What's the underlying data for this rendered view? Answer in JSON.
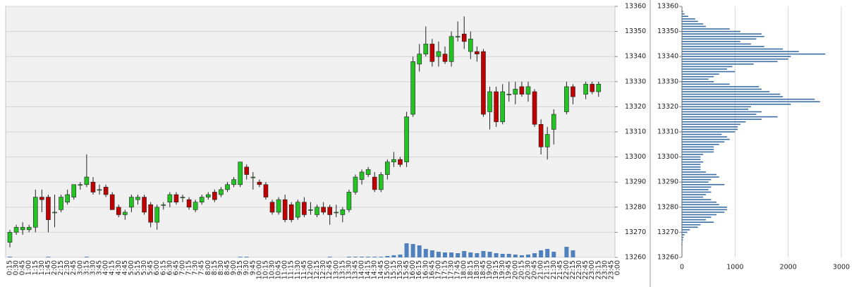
{
  "chart_data": [
    {
      "type": "candlestick",
      "x": [
        "0:15",
        "0:30",
        "0:45",
        "1:00",
        "1:15",
        "1:30",
        "1:45",
        "2:00",
        "2:15",
        "2:30",
        "2:45",
        "3:00",
        "3:15",
        "3:30",
        "3:45",
        "4:00",
        "4:15",
        "4:30",
        "4:45",
        "5:00",
        "5:15",
        "5:30",
        "5:45",
        "6:00",
        "6:15",
        "6:30",
        "6:45",
        "7:00",
        "7:15",
        "7:30",
        "7:45",
        "8:00",
        "8:15",
        "8:30",
        "8:45",
        "9:00",
        "9:15",
        "9:30",
        "9:45",
        "10:00",
        "10:15",
        "10:30",
        "10:45",
        "11:00",
        "11:15",
        "11:30",
        "11:45",
        "12:00",
        "12:15",
        "12:30",
        "12:45",
        "13:00",
        "13:15",
        "13:30",
        "13:45",
        "14:00",
        "14:15",
        "14:30",
        "14:45",
        "15:00",
        "15:15",
        "15:30",
        "15:45",
        "16:00",
        "16:15",
        "16:30",
        "16:45",
        "17:00",
        "17:15",
        "17:30",
        "17:45",
        "18:00",
        "18:15",
        "18:30",
        "18:45",
        "19:00",
        "19:15",
        "19:30",
        "19:45",
        "20:00",
        "20:15",
        "20:30",
        "20:45",
        "21:00",
        "21:15",
        "21:30",
        "21:45",
        "22:00",
        "22:15",
        "22:30",
        "22:45",
        "23:00",
        "23:15",
        "23:30",
        "23:45",
        "0:00"
      ],
      "open": [
        13266,
        13270,
        13271,
        13271,
        13272,
        13284,
        13284,
        13278,
        13279,
        13282,
        13284,
        13289,
        13289,
        13290,
        13287,
        13288,
        13285,
        13280,
        13277,
        13280,
        13283,
        13284,
        13281,
        13274,
        13281,
        13282,
        13285,
        13284,
        13283,
        13279,
        13282,
        13284,
        13286,
        13285,
        13287,
        13289,
        13289,
        13296,
        13292,
        13290,
        13289,
        13282,
        13278,
        13283,
        13281,
        13276,
        13282,
        13279,
        13277,
        13280,
        13280,
        13278,
        13277,
        13279,
        13286,
        13291,
        13293,
        13292,
        13287,
        13293,
        13298,
        13299,
        13298,
        13317,
        13337,
        13341,
        13345,
        13340,
        13341,
        13338,
        13348,
        13349,
        13342,
        13342,
        13342,
        13318,
        13326,
        13314,
        13325,
        13325,
        13328,
        13325,
        13326,
        13313,
        13304,
        13311,
        null,
        13318,
        13328,
        null,
        13325,
        13329,
        13326,
        null,
        null,
        null
      ],
      "high": [
        13271,
        13273,
        13274,
        13273,
        13287,
        13287,
        13285,
        13285,
        13285,
        13287,
        13289,
        13290,
        13301,
        13292,
        13289,
        13289,
        13286,
        13281,
        13279,
        13285,
        13285,
        13285,
        13282,
        13281,
        13282,
        13286,
        13286,
        13285,
        13284,
        13283,
        13285,
        13286,
        13287,
        13288,
        13290,
        13292,
        13298,
        13297,
        13294,
        13291,
        13290,
        13283,
        13284,
        13285,
        13282,
        13283,
        13284,
        13282,
        13281,
        13282,
        13281,
        13281,
        13280,
        13287,
        13293,
        13295,
        13296,
        13294,
        13294,
        13299,
        13302,
        13300,
        13318,
        13340,
        13345,
        13352,
        13347,
        13346,
        13344,
        13350,
        13354,
        13356,
        13350,
        13344,
        13343,
        13328,
        13328,
        13329,
        13330,
        13330,
        13330,
        13330,
        13327,
        13315,
        13312,
        13319,
        null,
        13330,
        13329,
        null,
        13330,
        13330,
        13330,
        null,
        null,
        null
      ],
      "low": [
        13264,
        13269,
        13269,
        13270,
        13270,
        13278,
        13270,
        13272,
        13278,
        13281,
        13283,
        13287,
        13288,
        13285,
        13285,
        13284,
        13279,
        13276,
        13275,
        13278,
        13281,
        13277,
        13272,
        13271,
        13279,
        13280,
        13281,
        13282,
        13279,
        13278,
        13281,
        13283,
        13282,
        13284,
        13286,
        13288,
        13288,
        13291,
        13287,
        13288,
        13283,
        13277,
        13277,
        13274,
        13274,
        13275,
        13276,
        13277,
        13276,
        13277,
        13273,
        13276,
        13274,
        13278,
        13285,
        13289,
        13292,
        13286,
        13286,
        13291,
        13296,
        13296,
        13296,
        13316,
        13334,
        13340,
        13336,
        13336,
        13337,
        13336,
        13346,
        13343,
        13339,
        13338,
        13316,
        13311,
        13312,
        13313,
        13322,
        13321,
        13324,
        13322,
        13312,
        13301,
        13299,
        13305,
        null,
        13317,
        13321,
        null,
        13323,
        13325,
        13324,
        null,
        null,
        null
      ],
      "close": [
        13270,
        13272,
        13272,
        13272,
        13284,
        13283,
        13275,
        13278,
        13284,
        13285,
        13289,
        13289,
        13292,
        13286,
        13287,
        13285,
        13279,
        13277,
        13278,
        13284,
        13284,
        13278,
        13274,
        13280,
        13281,
        13285,
        13282,
        13284,
        13280,
        13282,
        13284,
        13285,
        13283,
        13287,
        13289,
        13291,
        13298,
        13293,
        13292,
        13289,
        13284,
        13278,
        13283,
        13275,
        13275,
        13282,
        13277,
        13279,
        13280,
        13278,
        13277,
        13278,
        13279,
        13286,
        13292,
        13294,
        13295,
        13287,
        13293,
        13298,
        13299,
        13297,
        13316,
        13338,
        13341,
        13345,
        13338,
        13342,
        13338,
        13348,
        13348,
        13346,
        13347,
        13341,
        13317,
        13326,
        13314,
        13326,
        13325,
        13327,
        13325,
        13328,
        13313,
        13304,
        13309,
        13317,
        null,
        13328,
        13324,
        null,
        13329,
        13326,
        13329,
        null,
        null,
        null
      ],
      "volume": [
        1,
        0,
        0,
        0,
        0,
        0,
        1,
        0,
        0,
        0,
        0,
        0,
        1,
        0,
        0,
        0,
        0,
        0,
        0,
        0,
        0,
        0,
        0,
        0,
        0,
        0,
        0,
        0,
        0,
        0,
        0,
        0,
        0,
        0,
        0,
        0,
        1,
        1,
        0,
        0,
        0,
        0,
        0,
        0,
        0,
        0,
        0,
        0,
        0,
        0,
        1,
        0,
        0,
        1,
        1,
        1,
        1,
        1,
        1,
        2,
        3,
        4,
        20,
        19,
        17,
        12,
        10,
        8,
        7,
        7,
        6,
        9,
        7,
        6,
        9,
        8,
        6,
        5,
        5,
        4,
        3,
        4,
        6,
        10,
        12,
        8,
        null,
        15,
        10,
        null,
        null,
        null,
        null,
        null,
        null,
        null
      ],
      "up_color": "#22c322",
      "down_color": "#c00000",
      "volume_color": "#4f81bd",
      "ylim": [
        13260,
        13360
      ],
      "yticks": [
        13260,
        13270,
        13280,
        13290,
        13300,
        13310,
        13320,
        13330,
        13340,
        13350,
        13360
      ],
      "grid": true
    },
    {
      "type": "bar",
      "orientation": "horizontal",
      "y": [
        13358,
        13357,
        13356,
        13355,
        13354,
        13353,
        13352,
        13351,
        13350,
        13349,
        13348,
        13347,
        13346,
        13345,
        13344,
        13343,
        13342,
        13341,
        13340,
        13339,
        13338,
        13337,
        13336,
        13335,
        13334,
        13333,
        13332,
        13331,
        13330,
        13329,
        13328,
        13327,
        13326,
        13325,
        13324,
        13323,
        13322,
        13321,
        13320,
        13319,
        13318,
        13317,
        13316,
        13315,
        13314,
        13313,
        13312,
        13311,
        13310,
        13309,
        13308,
        13307,
        13306,
        13305,
        13304,
        13303,
        13302,
        13301,
        13300,
        13299,
        13298,
        13297,
        13296,
        13295,
        13294,
        13293,
        13292,
        13291,
        13290,
        13289,
        13288,
        13287,
        13286,
        13285,
        13284,
        13283,
        13282,
        13281,
        13280,
        13279,
        13278,
        13277,
        13276,
        13275,
        13274,
        13273,
        13272,
        13271,
        13270,
        13269,
        13268,
        13267,
        13266,
        13265
      ],
      "values": [
        20,
        50,
        120,
        250,
        300,
        400,
        450,
        900,
        1100,
        1500,
        1550,
        1400,
        1100,
        1300,
        1550,
        1900,
        2200,
        2700,
        2050,
        2000,
        1800,
        1350,
        950,
        850,
        1000,
        700,
        600,
        500,
        600,
        900,
        1450,
        1500,
        1650,
        1850,
        1900,
        2500,
        2600,
        2050,
        1300,
        1250,
        1500,
        1400,
        1800,
        1500,
        1200,
        1100,
        1050,
        1050,
        1000,
        750,
        850,
        900,
        800,
        700,
        600,
        600,
        600,
        400,
        350,
        350,
        400,
        350,
        350,
        350,
        450,
        650,
        700,
        550,
        500,
        800,
        550,
        500,
        550,
        450,
        400,
        550,
        650,
        700,
        850,
        850,
        800,
        650,
        550,
        450,
        600,
        350,
        300,
        150,
        100,
        50,
        30,
        20,
        10,
        10
      ],
      "color": "#3a6ea5",
      "xlim": [
        0,
        3000
      ],
      "xticks": [
        0,
        1000,
        2000,
        3000
      ],
      "ylim": [
        13260,
        13360
      ],
      "yticks": [
        13260,
        13270,
        13280,
        13290,
        13300,
        13310,
        13320,
        13330,
        13340,
        13350,
        13360
      ],
      "grid": true
    }
  ]
}
